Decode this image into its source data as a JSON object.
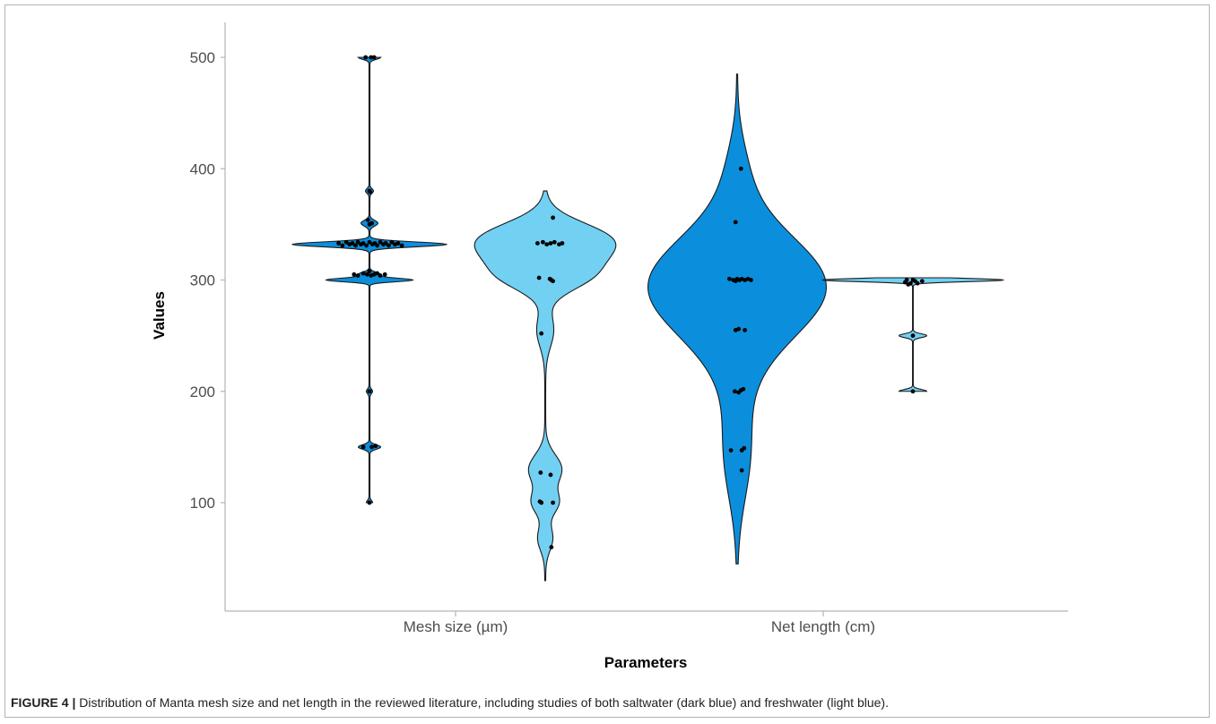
{
  "chart_data": {
    "type": "violin",
    "xlabel": "Parameters",
    "ylabel": "Values",
    "ylim": [
      25,
      525
    ],
    "y_ticks": [
      100,
      200,
      300,
      400,
      500
    ],
    "categories": [
      "Mesh size (µm)",
      "Net length (cm)"
    ],
    "colors": {
      "saltwater": "#0b8fdc",
      "freshwater": "#72d0f3"
    },
    "groups": [
      {
        "category": "Mesh size (µm)",
        "series": "saltwater",
        "range": [
          100,
          500
        ],
        "points": [
          [
            0.02,
            500
          ],
          [
            0.06,
            500
          ],
          [
            -0.05,
            500
          ],
          [
            0.0,
            380
          ],
          [
            0.01,
            379
          ],
          [
            -0.02,
            354
          ],
          [
            0.03,
            351
          ],
          [
            0.0,
            350
          ],
          [
            -0.4,
            333
          ],
          [
            -0.35,
            331
          ],
          [
            -0.3,
            334
          ],
          [
            -0.26,
            332
          ],
          [
            -0.22,
            333
          ],
          [
            -0.18,
            331
          ],
          [
            -0.15,
            334
          ],
          [
            -0.11,
            332
          ],
          [
            -0.08,
            333
          ],
          [
            -0.04,
            331
          ],
          [
            0.0,
            334
          ],
          [
            0.04,
            332
          ],
          [
            0.07,
            333
          ],
          [
            0.1,
            331
          ],
          [
            0.14,
            334
          ],
          [
            0.18,
            332
          ],
          [
            0.21,
            333
          ],
          [
            0.25,
            331
          ],
          [
            0.29,
            334
          ],
          [
            0.33,
            332
          ],
          [
            0.37,
            333
          ],
          [
            0.42,
            331
          ],
          [
            -0.2,
            305
          ],
          [
            -0.15,
            304
          ],
          [
            -0.08,
            306
          ],
          [
            -0.03,
            305
          ],
          [
            0.0,
            308
          ],
          [
            0.02,
            304
          ],
          [
            0.06,
            305
          ],
          [
            0.1,
            306
          ],
          [
            0.14,
            304
          ],
          [
            0.2,
            305
          ],
          [
            0.0,
            200
          ],
          [
            -0.08,
            150
          ],
          [
            0.03,
            150
          ],
          [
            0.08,
            151
          ],
          [
            0.0,
            100
          ]
        ]
      },
      {
        "category": "Mesh size (µm)",
        "series": "freshwater",
        "range": [
          30,
          380
        ],
        "points": [
          [
            0.1,
            356
          ],
          [
            -0.1,
            333
          ],
          [
            -0.03,
            334
          ],
          [
            0.02,
            332
          ],
          [
            0.07,
            333
          ],
          [
            0.12,
            334
          ],
          [
            0.18,
            332
          ],
          [
            0.22,
            333
          ],
          [
            -0.08,
            302
          ],
          [
            0.06,
            301
          ],
          [
            0.08,
            300
          ],
          [
            0.1,
            299
          ],
          [
            -0.05,
            252
          ],
          [
            -0.06,
            127
          ],
          [
            0.07,
            125
          ],
          [
            -0.07,
            101
          ],
          [
            -0.05,
            100
          ],
          [
            0.1,
            100
          ],
          [
            0.08,
            60
          ]
        ]
      },
      {
        "category": "Net length (cm)",
        "series": "saltwater",
        "range": [
          45,
          485
        ],
        "points": [
          [
            0.05,
            400
          ],
          [
            -0.02,
            352
          ],
          [
            -0.1,
            301
          ],
          [
            -0.05,
            300
          ],
          [
            -0.02,
            299
          ],
          [
            0.0,
            301
          ],
          [
            0.03,
            300
          ],
          [
            0.06,
            301
          ],
          [
            0.1,
            300
          ],
          [
            0.14,
            301
          ],
          [
            0.18,
            300
          ],
          [
            -0.02,
            255
          ],
          [
            0.02,
            256
          ],
          [
            0.1,
            255
          ],
          [
            -0.03,
            200
          ],
          [
            0.02,
            199
          ],
          [
            0.05,
            201
          ],
          [
            0.08,
            202
          ],
          [
            -0.08,
            147
          ],
          [
            0.06,
            147
          ],
          [
            0.09,
            149
          ],
          [
            0.06,
            129
          ]
        ]
      },
      {
        "category": "Net length (cm)",
        "series": "freshwater",
        "range": [
          200,
          302
        ],
        "points": [
          [
            -0.1,
            298
          ],
          [
            -0.08,
            300
          ],
          [
            -0.06,
            296
          ],
          [
            -0.03,
            297
          ],
          [
            0.0,
            300
          ],
          [
            0.03,
            299
          ],
          [
            0.06,
            297
          ],
          [
            0.12,
            299
          ],
          [
            0.0,
            250
          ],
          [
            0.0,
            200
          ]
        ]
      }
    ]
  },
  "caption": {
    "label": "FIGURE 4 |",
    "text": " Distribution of Manta mesh size and net length in the reviewed literature, including studies of both saltwater (dark blue) and freshwater (light blue)."
  }
}
